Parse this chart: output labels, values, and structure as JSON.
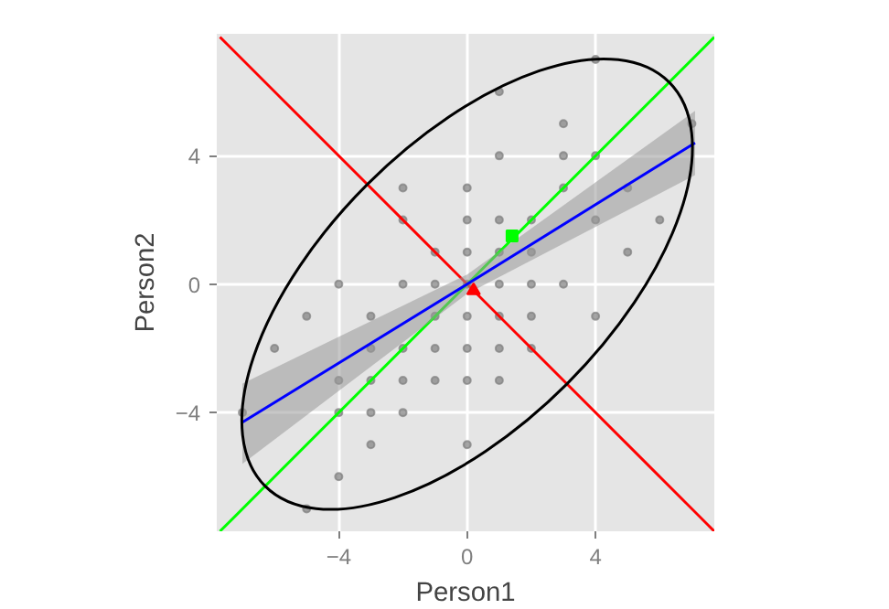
{
  "chart_data": {
    "type": "scatter",
    "xlabel": "Person1",
    "ylabel": "Person2",
    "xlim": [
      -7.8,
      7.7
    ],
    "ylim": [
      -7.7,
      7.8
    ],
    "xticks": [
      -4,
      0,
      4
    ],
    "yticks": [
      -4,
      0,
      4
    ],
    "grid": true,
    "series": [
      {
        "color": "#7f7f7f",
        "marker": "circle",
        "x": [
          -2,
          -1,
          -2,
          0,
          0,
          4,
          1,
          3,
          7,
          1,
          3,
          4,
          0,
          3,
          5,
          1,
          2,
          4,
          6,
          0,
          1,
          2,
          5,
          -4,
          -2,
          -1,
          1,
          2,
          3,
          -5,
          -3,
          -1,
          -6,
          -3,
          -2,
          -1,
          -4,
          -3,
          -2,
          -1,
          -7,
          -4,
          -3,
          -2,
          -3,
          -4,
          -5,
          0,
          1,
          2,
          4,
          0,
          1,
          2,
          0,
          1,
          0
        ],
        "values": [
          3,
          1,
          2,
          2,
          3,
          7,
          6,
          5,
          5,
          4,
          4,
          4,
          1,
          3,
          3,
          2,
          2,
          2,
          2,
          0,
          1,
          1,
          1,
          0,
          0,
          0,
          0,
          0,
          0,
          -1,
          -1,
          -1,
          -2,
          -2,
          -2,
          -2,
          -3,
          -3,
          -3,
          -3,
          -4,
          -4,
          -4,
          -4,
          -5,
          -6,
          -7,
          -1,
          -1,
          -1,
          -1,
          -2,
          -2,
          -2,
          -3,
          -3,
          -5
        ]
      },
      {
        "type": "line",
        "color": "#ff0000",
        "x": [
          -7.7,
          7.7
        ],
        "values": [
          7.7,
          -7.7
        ]
      },
      {
        "type": "line",
        "color": "#00ff00",
        "x": [
          -7.7,
          7.7
        ],
        "values": [
          -7.7,
          7.7
        ]
      },
      {
        "type": "line",
        "color": "#0000ff",
        "x": [
          -7,
          0,
          7.1
        ],
        "values": [
          -4.3,
          0,
          4.4
        ],
        "lower": [
          -5.6,
          -0.3,
          3.4
        ],
        "upper": [
          -3.1,
          0.3,
          5.4
        ]
      },
      {
        "color": "#00ff00",
        "marker": "square",
        "x": [
          1.4
        ],
        "values": [
          1.5
        ]
      },
      {
        "color": "#ff0000",
        "marker": "triangle",
        "x": [
          0.2
        ],
        "values": [
          -0.2
        ]
      }
    ]
  }
}
